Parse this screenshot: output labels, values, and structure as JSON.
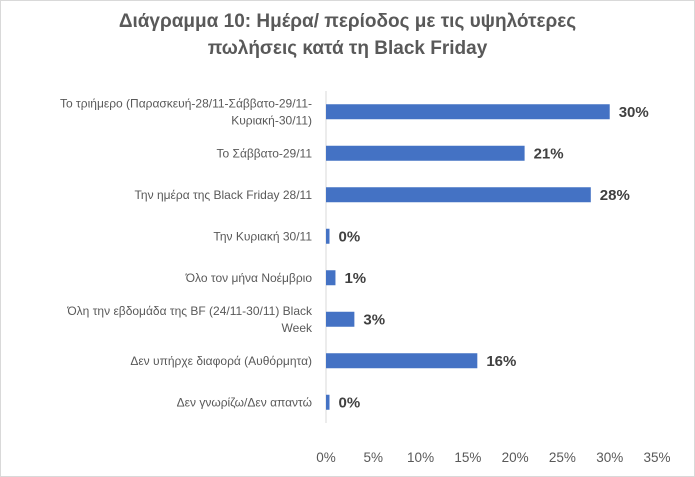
{
  "chart_data": {
    "type": "bar",
    "orientation": "horizontal",
    "title_lines": [
      "Διάγραμμα 10: Ημέρα/ περίοδος με τις υψηλότερες",
      "πωλήσεις κατά τη Black  Friday"
    ],
    "categories": [
      [
        "Το τριήμερο (Παρασκευή-28/11-Σάββατο-29/11-",
        "Κυριακή-30/11)"
      ],
      [
        "Το Σάββατο-29/11"
      ],
      [
        "Την ημέρα της Black Friday 28/11"
      ],
      [
        "Την  Κυριακή 30/11"
      ],
      [
        "Όλο τον μήνα Νοέμβριο"
      ],
      [
        "Όλη την εβδομάδα της BF (24/11-30/11) Black",
        "Week"
      ],
      [
        "Δεν υπήρχε διαφορά (Αυθόρμητα)"
      ],
      [
        "Δεν γνωρίζω/Δεν απαντώ"
      ]
    ],
    "values": [
      30,
      21,
      28,
      0,
      1,
      3,
      16,
      0
    ],
    "value_labels": [
      "30%",
      "21%",
      "28%",
      "0%",
      "1%",
      "3%",
      "16%",
      "0%"
    ],
    "xlim": [
      0,
      35
    ],
    "x_ticks": [
      "0%",
      "5%",
      "10%",
      "15%",
      "20%",
      "25%",
      "30%",
      "35%"
    ],
    "bar_color": "#4472c4",
    "grid": false,
    "legend": "none"
  }
}
